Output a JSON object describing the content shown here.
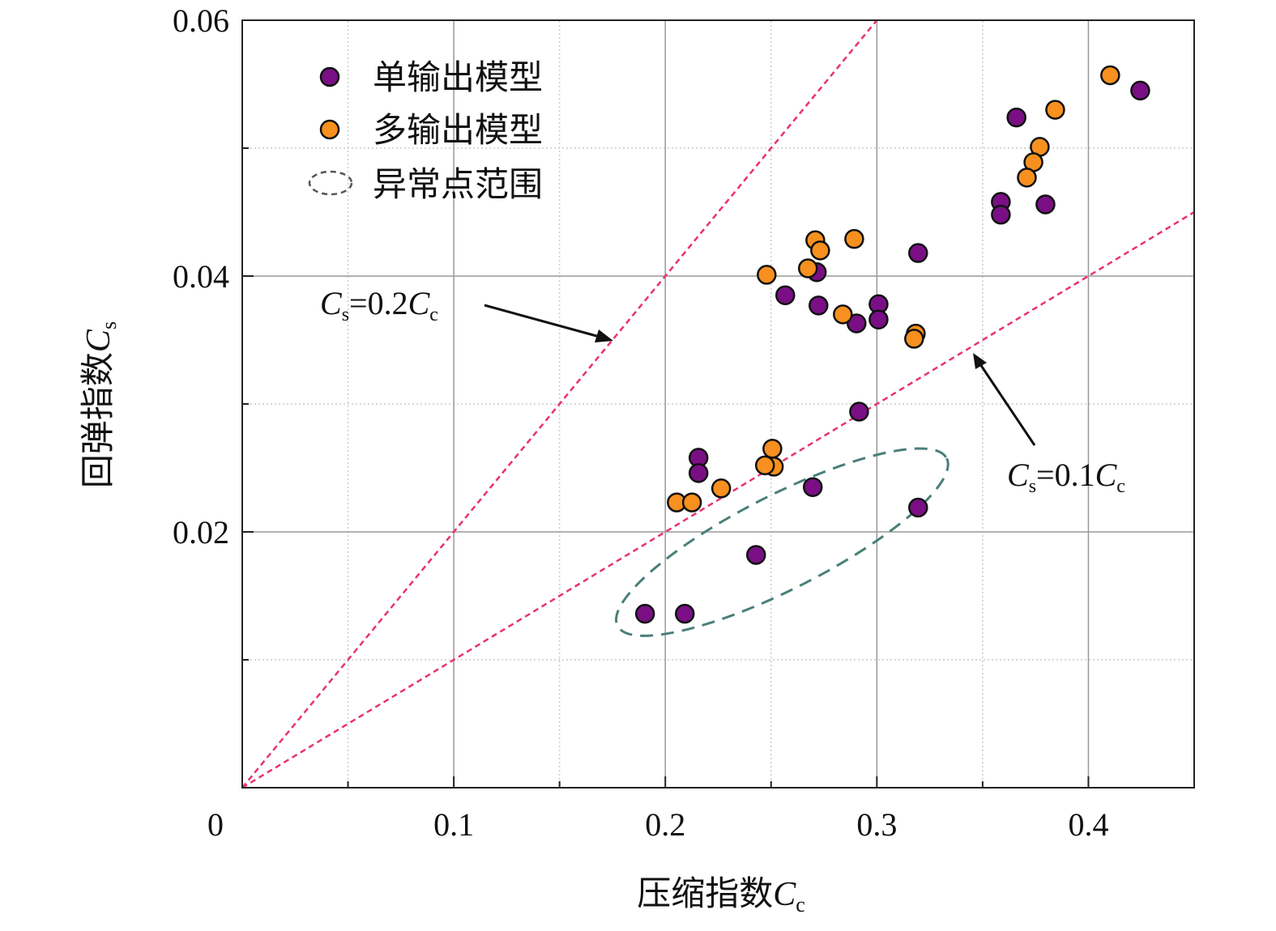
{
  "chart_data": {
    "type": "scatter",
    "xlabel": {
      "main": "压缩指数",
      "var": "C",
      "sub": "c"
    },
    "ylabel": {
      "main": "回弹指数",
      "var": "C",
      "sub": "s"
    },
    "xlim": [
      0,
      0.45
    ],
    "ylim": [
      0,
      0.06
    ],
    "origin_label": "0",
    "x_ticks": [
      {
        "v": 0.1,
        "label": "0.1"
      },
      {
        "v": 0.2,
        "label": "0.2"
      },
      {
        "v": 0.3,
        "label": "0.3"
      },
      {
        "v": 0.4,
        "label": "0.4"
      }
    ],
    "y_ticks": [
      {
        "v": 0.02,
        "label": "0.02"
      },
      {
        "v": 0.04,
        "label": "0.04"
      },
      {
        "v": 0.06,
        "label": "0.06"
      }
    ],
    "grid": true,
    "legend_position": "top-left",
    "series": [
      {
        "name": "单输出模型",
        "color": "#7a0f85",
        "points": [
          [
            0.4245,
            0.0545
          ],
          [
            0.366,
            0.0524
          ],
          [
            0.3586,
            0.0458
          ],
          [
            0.3586,
            0.0448
          ],
          [
            0.3797,
            0.0456
          ],
          [
            0.3195,
            0.0418
          ],
          [
            0.2716,
            0.0403
          ],
          [
            0.2567,
            0.0385
          ],
          [
            0.2724,
            0.0377
          ],
          [
            0.3008,
            0.0378
          ],
          [
            0.3008,
            0.0366
          ],
          [
            0.2904,
            0.0363
          ],
          [
            0.2916,
            0.0294
          ],
          [
            0.2157,
            0.0258
          ],
          [
            0.2157,
            0.0246
          ],
          [
            0.2697,
            0.0235
          ],
          [
            0.3195,
            0.0219
          ],
          [
            0.2429,
            0.0182
          ],
          [
            0.1904,
            0.0136
          ],
          [
            0.2092,
            0.0136
          ]
        ]
      },
      {
        "name": "多输出模型",
        "color": "#f7901e",
        "points": [
          [
            0.4103,
            0.0557
          ],
          [
            0.3843,
            0.053
          ],
          [
            0.377,
            0.0501
          ],
          [
            0.374,
            0.0489
          ],
          [
            0.3709,
            0.0477
          ],
          [
            0.2893,
            0.0429
          ],
          [
            0.2709,
            0.0428
          ],
          [
            0.2732,
            0.042
          ],
          [
            0.2674,
            0.0406
          ],
          [
            0.2479,
            0.0401
          ],
          [
            0.2839,
            0.037
          ],
          [
            0.3184,
            0.0355
          ],
          [
            0.3176,
            0.0351
          ],
          [
            0.2506,
            0.0265
          ],
          [
            0.2513,
            0.0251
          ],
          [
            0.2471,
            0.0252
          ],
          [
            0.2264,
            0.0234
          ],
          [
            0.2054,
            0.0223
          ],
          [
            0.2126,
            0.0223
          ]
        ]
      }
    ],
    "outlier_region": {
      "name": "异常点范围",
      "center": [
        0.2552,
        0.0192
      ]
    },
    "reference_lines": [
      {
        "slope": 0.2,
        "label_var": "C",
        "label_sub": "s",
        "label_mid": "=0.2",
        "label_var2": "C",
        "label_sub2": "c",
        "color": "#e8336b"
      },
      {
        "slope": 0.1,
        "label_var": "C",
        "label_sub": "s",
        "label_mid": "=0.1",
        "label_var2": "C",
        "label_sub2": "c",
        "color": "#e8336b"
      }
    ]
  }
}
